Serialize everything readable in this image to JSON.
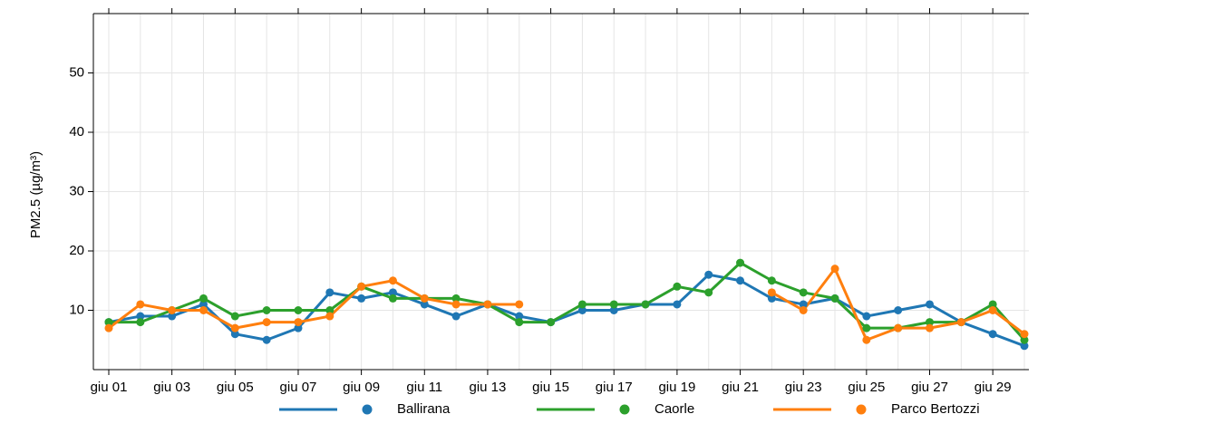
{
  "chart_data": {
    "type": "line",
    "y_label": "PM2.5 (µg/m³)",
    "categories": [
      "giu 01",
      null,
      "giu 03",
      null,
      "giu 05",
      null,
      "giu 07",
      null,
      "giu 09",
      null,
      "giu 11",
      null,
      "giu 13",
      null,
      "giu 15",
      null,
      "giu 17",
      null,
      "giu 19",
      null,
      "giu 21",
      null,
      "giu 23",
      null,
      "giu 25",
      null,
      "giu 27",
      null,
      "giu 29",
      null
    ],
    "series": [
      {
        "name": "Ballirana",
        "color": "#1f77b4",
        "values": [
          8,
          9,
          9,
          11,
          6,
          5,
          7,
          13,
          12,
          13,
          11,
          9,
          11,
          9,
          8,
          10,
          10,
          11,
          11,
          16,
          15,
          12,
          11,
          12,
          9,
          10,
          11,
          8,
          6,
          4
        ]
      },
      {
        "name": "Caorle",
        "color": "#2ca02c",
        "values": [
          8,
          8,
          10,
          12,
          9,
          10,
          10,
          10,
          14,
          12,
          12,
          12,
          11,
          8,
          8,
          11,
          11,
          11,
          14,
          13,
          18,
          15,
          13,
          12,
          7,
          7,
          8,
          8,
          11,
          5
        ]
      },
      {
        "name": "Parco Bertozzi",
        "color": "#ff7f0e",
        "values": [
          7,
          11,
          10,
          10,
          7,
          8,
          8,
          9,
          14,
          15,
          12,
          11,
          11,
          11,
          null,
          null,
          null,
          null,
          null,
          null,
          null,
          13,
          10,
          17,
          5,
          7,
          7,
          8,
          10,
          6
        ]
      }
    ],
    "ylim": [
      0,
      60
    ],
    "yticks": [
      10,
      20,
      30,
      40,
      50
    ],
    "grid": true,
    "legend": "bottom"
  }
}
